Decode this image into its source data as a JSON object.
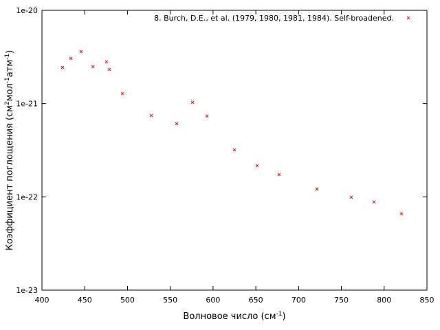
{
  "chart_data": {
    "type": "scatter",
    "xlabel": [
      {
        "text": "Волновое число (см"
      },
      {
        "text": "-1",
        "sup": true
      },
      {
        "text": ")"
      }
    ],
    "ylabel": [
      {
        "text": "Коэффициент поглощения (см"
      },
      {
        "text": "2",
        "sup": true
      },
      {
        "text": "мол"
      },
      {
        "text": "-1",
        "sup": true
      },
      {
        "text": "атм"
      },
      {
        "text": "-1",
        "sup": true
      },
      {
        "text": ")"
      }
    ],
    "xlim": [
      400,
      850
    ],
    "xticks": [
      400,
      450,
      500,
      550,
      600,
      650,
      700,
      750,
      800,
      850
    ],
    "ylim": [
      1e-23,
      1e-20
    ],
    "yticks": [
      {
        "value": 1e-23,
        "label": "1e-23"
      },
      {
        "value": 1e-22,
        "label": "1e-22"
      },
      {
        "value": 1e-21,
        "label": "1e-21"
      },
      {
        "value": 1e-20,
        "label": "1e-20"
      }
    ],
    "log_y": true,
    "legend": "top-right",
    "series": [
      {
        "name": "8. Burch, D.E., et al. (1979, 1980, 1981, 1984). Self-broadened.",
        "color": "#e8262e",
        "x": [
          424.1,
          433.8,
          445.8,
          459.5,
          475.5,
          478.8,
          494,
          527.8,
          557.5,
          576,
          592.9,
          625,
          651.5,
          677.2,
          721.4,
          761.6,
          788.1,
          820.3
        ],
        "values": [
          2.44e-21,
          3.05e-21,
          3.61e-21,
          2.49e-21,
          2.8e-21,
          2.32e-21,
          1.28e-21,
          7.45e-22,
          6.08e-22,
          1.03e-21,
          7.33e-22,
          3.19e-22,
          2.16e-22,
          1.73e-22,
          1.21e-22,
          9.9e-23,
          8.8e-23,
          6.6e-23
        ]
      }
    ]
  }
}
